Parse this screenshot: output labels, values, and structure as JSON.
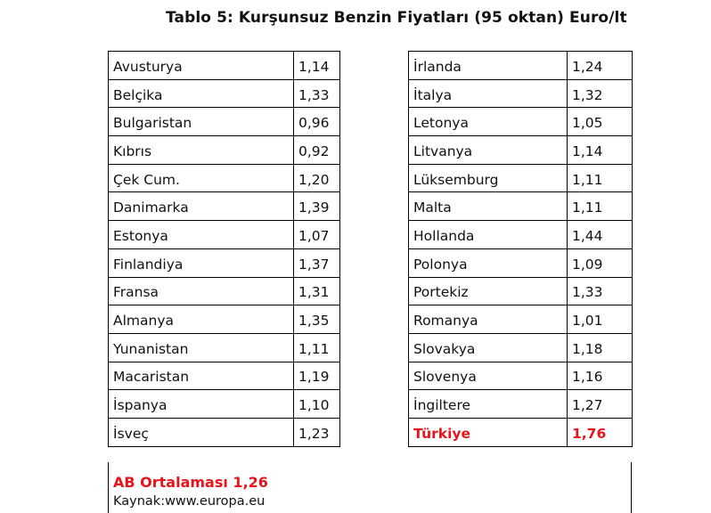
{
  "title": "Tablo 5: Kurşunsuz Benzin Fiyatları (95 oktan) Euro/lt",
  "left_table": [
    {
      "country": "Avusturya",
      "price": "1,14"
    },
    {
      "country": "Belçika",
      "price": "1,33"
    },
    {
      "country": "Bulgaristan",
      "price": "0,96"
    },
    {
      "country": "Kıbrıs",
      "price": "0,92"
    },
    {
      "country": "Çek Cum.",
      "price": "1,20"
    },
    {
      "country": "Danimarka",
      "price": "1,39"
    },
    {
      "country": "Estonya",
      "price": "1,07"
    },
    {
      "country": "Finlandiya",
      "price": "1,37"
    },
    {
      "country": "Fransa",
      "price": "1,31"
    },
    {
      "country": "Almanya",
      "price": "1,35"
    },
    {
      "country": "Yunanistan",
      "price": "1,11"
    },
    {
      "country": "Macaristan",
      "price": "1,19"
    },
    {
      "country": "İspanya",
      "price": "1,10"
    },
    {
      "country": "İsveç",
      "price": "1,23"
    }
  ],
  "right_table": [
    {
      "country": "İrlanda",
      "price": "1,24"
    },
    {
      "country": "İtalya",
      "price": "1,32"
    },
    {
      "country": "Letonya",
      "price": "1,05"
    },
    {
      "country": "Litvanya",
      "price": "1,14"
    },
    {
      "country": "Lüksemburg",
      "price": "1,11"
    },
    {
      "country": "Malta",
      "price": "1,11"
    },
    {
      "country": "Hollanda",
      "price": "1,44"
    },
    {
      "country": "Polonya",
      "price": "1,09"
    },
    {
      "country": "Portekiz",
      "price": "1,33"
    },
    {
      "country": "Romanya",
      "price": "1,01"
    },
    {
      "country": "Slovakya",
      "price": "1,18"
    },
    {
      "country": "Slovenya",
      "price": "1,16"
    },
    {
      "country": "İngiltere",
      "price": "1,27"
    },
    {
      "country": "Türkiye",
      "price": "1,76",
      "highlight": true
    }
  ],
  "eu_average": "AB Ortalaması 1,26",
  "source": "Kaynak:www.europa.eu",
  "colors": {
    "highlight": "#e8141c",
    "text": "#111111",
    "border": "#000000"
  }
}
